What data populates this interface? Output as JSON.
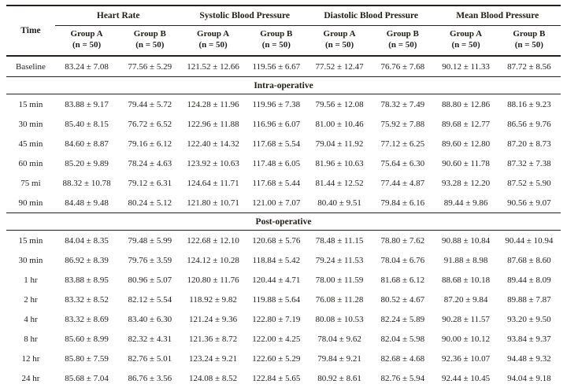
{
  "page": {
    "background": "#ffffff",
    "text_color": "#201d1b",
    "rule_color": "#23201d"
  },
  "table": {
    "time_header": "Time",
    "groups": [
      {
        "label": "Heart Rate",
        "sub": [
          {
            "name": "Group A",
            "n": "(n = 50)"
          },
          {
            "name": "Group B",
            "n": "(n = 50)"
          }
        ]
      },
      {
        "label": "Systolic Blood Pressure",
        "sub": [
          {
            "name": "Group A",
            "n": "(n = 50)"
          },
          {
            "name": "Group B",
            "n": "(n = 50)"
          }
        ]
      },
      {
        "label": "Diastolic Blood Pressure",
        "sub": [
          {
            "name": "Group A",
            "n": "(n = 50)"
          },
          {
            "name": "Group B",
            "n": "(n = 50)"
          }
        ]
      },
      {
        "label": "Mean Blood Pressure",
        "sub": [
          {
            "name": "Group A",
            "n": "(n = 50)"
          },
          {
            "name": "Group B",
            "n": "(n = 50)"
          }
        ]
      }
    ],
    "sections": [
      {
        "title": "",
        "rows": [
          [
            "Baseline",
            "83.24 ± 7.08",
            "77.56 ± 5.29",
            "121.52 ± 12.66",
            "119.56 ± 6.67",
            "77.52 ± 12.47",
            "76.76 ± 7.68",
            "90.12 ± 11.33",
            "87.72 ± 8.56"
          ]
        ]
      },
      {
        "title": "Intra-operative",
        "rows": [
          [
            "15 min",
            "83.88 ± 9.17",
            "79.44 ± 5.72",
            "124.28 ± 11.96",
            "119.96 ± 7.38",
            "79.56 ± 12.08",
            "78.32 ± 7.49",
            "88.80 ± 12.86",
            "88.16 ± 9.23"
          ],
          [
            "30 min",
            "85.40 ± 8.15",
            "76.72 ± 6.52",
            "122.96 ± 11.88",
            "116.96 ± 6.07",
            "81.00 ± 10.46",
            "75.92 ± 7.88",
            "89.68 ± 12.77",
            "86.56 ± 9.76"
          ],
          [
            "45 min",
            "84.60 ± 8.87",
            "79.16 ± 6.12",
            "122.40 ± 14.32",
            "117.68 ± 5.54",
            "79.04 ± 11.92",
            "77.12 ± 6.25",
            "89.60 ± 12.80",
            "87.20 ± 8.73"
          ],
          [
            "60 min",
            "85.20 ± 9.89",
            "78.24 ± 4.63",
            "123.92 ± 10.63",
            "117.48 ± 6.05",
            "81.96 ± 10.63",
            "75.64 ± 6.30",
            "90.60 ± 11.78",
            "87.32 ± 7.38"
          ],
          [
            "75 mi",
            "88.32 ± 10.78",
            "79.12 ± 6.31",
            "124.64 ± 11.71",
            "117.68 ± 5.44",
            "81.44 ± 12.52",
            "77.44 ± 4.87",
            "93.28 ± 12.20",
            "87.52 ± 5.90"
          ],
          [
            "90 min",
            "84.48 ± 9.48",
            "80.24 ± 5.12",
            "121.80 ± 10.71",
            "121.00 ± 7.07",
            "80.40 ± 9.51",
            "79.84 ± 6.16",
            "89.44 ± 9.86",
            "90.56 ± 9.07"
          ]
        ]
      },
      {
        "title": "Post-operative",
        "rows": [
          [
            "15 min",
            "84.04 ± 8.35",
            "79.48 ± 5.99",
            "122.68 ± 12.10",
            "120.68 ± 5.76",
            "78.48 ± 11.15",
            "78.80 ± 7.62",
            "90.88 ± 10.84",
            "90.44 ± 10.94"
          ],
          [
            "30 min",
            "86.92 ± 8.39",
            "79.76 ± 3.59",
            "124.12 ± 10.28",
            "118.84 ± 5.42",
            "79.24 ± 11.53",
            "78.04 ± 6.76",
            "91.88 ± 8.98",
            "87.68 ± 8.60"
          ],
          [
            "1 hr",
            "83.88 ± 8.95",
            "80.96 ± 5.07",
            "120.80 ± 11.76",
            "120.44 ± 4.71",
            "78.00 ± 11.59",
            "81.68 ± 6.12",
            "88.68 ± 10.18",
            "89.44 ± 8.09"
          ],
          [
            "2 hr",
            "83.32 ± 8.52",
            "82.12 ± 5.54",
            "118.92 ± 9.82",
            "119.88 ± 5.64",
            "76.08 ± 11.28",
            "80.52 ± 4.67",
            "87.20 ± 9.84",
            "89.88 ± 7.87"
          ],
          [
            "4 hr",
            "83.32 ± 8.69",
            "83.40 ± 6.30",
            "121.24 ± 9.36",
            "122.80 ± 7.19",
            "80.08 ± 10.53",
            "82.24 ± 5.89",
            "90.28 ± 11.57",
            "93.20 ± 9.50"
          ],
          [
            "8 hr",
            "85.60 ± 8.99",
            "82.32 ± 4.31",
            "121.36 ± 8.72",
            "122.00 ± 4.25",
            "78.04 ± 9.62",
            "82.04 ± 5.98",
            "90.00 ± 10.12",
            "93.84 ± 9.37"
          ],
          [
            "12 hr",
            "85.80 ± 7.59",
            "82.76 ± 5.01",
            "123.24 ± 9.21",
            "122.60 ± 5.29",
            "79.84 ± 9.21",
            "82.68 ± 4.68",
            "92.36 ± 10.07",
            "94.48 ± 9.32"
          ],
          [
            "24 hr",
            "85.68 ± 7.04",
            "86.76 ± 3.56",
            "124.08 ± 8.52",
            "122.84 ± 5.65",
            "80.92 ± 8.61",
            "82.76 ± 5.94",
            "92.44 ± 10.45",
            "94.04 ± 9.18"
          ]
        ]
      }
    ]
  }
}
